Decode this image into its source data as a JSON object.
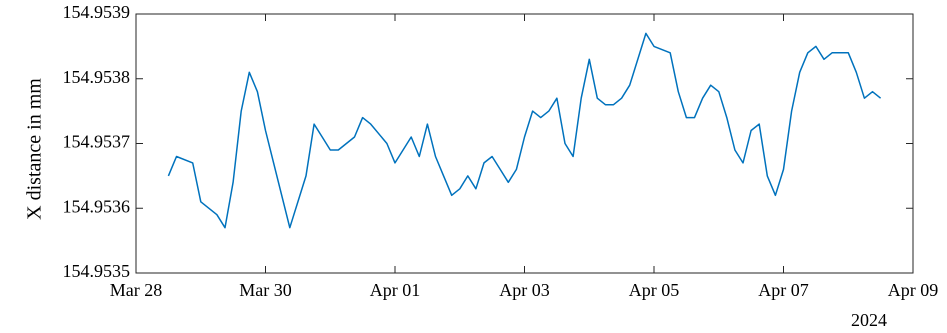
{
  "chart_data": {
    "type": "line",
    "title": "",
    "xlabel": "",
    "ylabel": "X distance in mm",
    "x_year_label": "2024",
    "x_ticks": [
      "Mar 28",
      "Mar 30",
      "Apr 01",
      "Apr 03",
      "Apr 05",
      "Apr 07",
      "Apr 09"
    ],
    "y_ticks": [
      "154.9535",
      "154.9536",
      "154.9537",
      "154.9538",
      "154.9539"
    ],
    "xlim": [
      "2024-03-28",
      "2024-04-09"
    ],
    "ylim": [
      154.9535,
      154.9539
    ],
    "grid": false,
    "line_color": "#0072BD",
    "series": [
      {
        "x": [
          "2024-03-28 12:00",
          "2024-03-28 14:00",
          "2024-03-28 15:00",
          "2024-03-28 21:00",
          "2024-03-29 00:00",
          "2024-03-29 06:00",
          "2024-03-29 09:00",
          "2024-03-29 12:00",
          "2024-03-29 15:00",
          "2024-03-29 18:00",
          "2024-03-29 21:00",
          "2024-03-30 00:00",
          "2024-03-30 03:00",
          "2024-03-30 09:00",
          "2024-03-30 15:00",
          "2024-03-30 18:00",
          "2024-03-30 21:00",
          "2024-03-31 00:00",
          "2024-03-31 03:00",
          "2024-03-31 09:00",
          "2024-03-31 12:00",
          "2024-03-31 15:00",
          "2024-03-31 21:00",
          "2024-04-01 00:00",
          "2024-04-01 06:00",
          "2024-04-01 09:00",
          "2024-04-01 12:00",
          "2024-04-01 15:00",
          "2024-04-01 18:00",
          "2024-04-01 21:00",
          "2024-04-02 00:00",
          "2024-04-02 03:00",
          "2024-04-02 06:00",
          "2024-04-02 09:00",
          "2024-04-02 12:00",
          "2024-04-02 15:00",
          "2024-04-02 18:00",
          "2024-04-02 21:00",
          "2024-04-03 00:00",
          "2024-04-03 03:00",
          "2024-04-03 06:00",
          "2024-04-03 09:00",
          "2024-04-03 12:00",
          "2024-04-03 15:00",
          "2024-04-03 18:00",
          "2024-04-03 21:00",
          "2024-04-04 00:00",
          "2024-04-04 03:00",
          "2024-04-04 06:00",
          "2024-04-04 09:00",
          "2024-04-04 12:00",
          "2024-04-04 15:00",
          "2024-04-04 21:00",
          "2024-04-05 00:00",
          "2024-04-05 06:00",
          "2024-04-05 09:00",
          "2024-04-05 12:00",
          "2024-04-05 15:00",
          "2024-04-05 18:00",
          "2024-04-05 21:00",
          "2024-04-06 00:00",
          "2024-04-06 03:00",
          "2024-04-06 06:00",
          "2024-04-06 09:00",
          "2024-04-06 12:00",
          "2024-04-06 15:00",
          "2024-04-06 18:00",
          "2024-04-06 21:00",
          "2024-04-07 00:00",
          "2024-04-07 03:00",
          "2024-04-07 06:00",
          "2024-04-07 09:00",
          "2024-04-07 12:00",
          "2024-04-07 15:00",
          "2024-04-07 18:00",
          "2024-04-07 21:00",
          "2024-04-08 00:00",
          "2024-04-08 03:00",
          "2024-04-08 06:00",
          "2024-04-08 09:00",
          "2024-04-08 12:00"
        ],
        "y": [
          154.95365,
          154.95367,
          154.95368,
          154.95367,
          154.95361,
          154.95359,
          154.95357,
          154.95364,
          154.95375,
          154.95381,
          154.95378,
          154.95372,
          154.95367,
          154.95357,
          154.95365,
          154.95373,
          154.95371,
          154.95369,
          154.95369,
          154.95371,
          154.95374,
          154.95373,
          154.9537,
          154.95367,
          154.95371,
          154.95368,
          154.95373,
          154.95368,
          154.95365,
          154.95362,
          154.95363,
          154.95365,
          154.95363,
          154.95367,
          154.95368,
          154.95366,
          154.95364,
          154.95366,
          154.95371,
          154.95375,
          154.95374,
          154.95375,
          154.95377,
          154.9537,
          154.95368,
          154.95377,
          154.95383,
          154.95377,
          154.95376,
          154.95376,
          154.95377,
          154.95379,
          154.95387,
          154.95385,
          154.95384,
          154.95378,
          154.95374,
          154.95374,
          154.95377,
          154.95379,
          154.95378,
          154.95374,
          154.95369,
          154.95367,
          154.95372,
          154.95373,
          154.95365,
          154.95362,
          154.95366,
          154.95375,
          154.95381,
          154.95384,
          154.95385,
          154.95383,
          154.95384,
          154.95384,
          154.95384,
          154.95381,
          154.95377,
          154.95378,
          154.95377
        ]
      }
    ]
  }
}
